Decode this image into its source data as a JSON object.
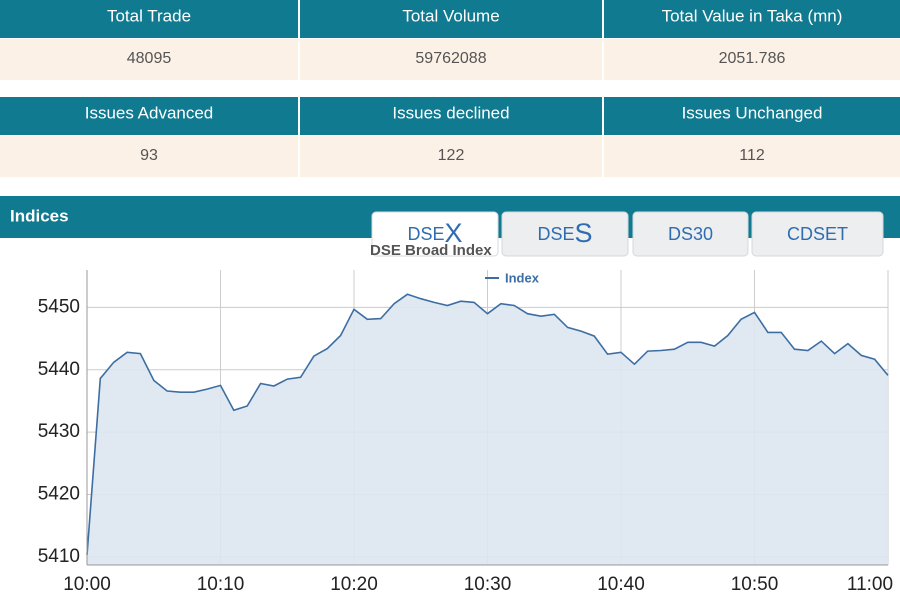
{
  "summary_table": {
    "headers": [
      "Total Trade",
      "Total Volume",
      "Total Value in Taka (mn)"
    ],
    "values": [
      "48095",
      "59762088",
      "2051.786"
    ]
  },
  "issues_table": {
    "headers": [
      "Issues Advanced",
      "Issues declined",
      "Issues Unchanged"
    ],
    "values": [
      "93",
      "122",
      "112"
    ]
  },
  "section_title": "Indices",
  "tabs": [
    {
      "text": "DSE",
      "accent": "X"
    },
    {
      "text": "DSE",
      "accent": "S"
    },
    {
      "text": "DS30"
    },
    {
      "text": "CDSET"
    }
  ],
  "chart_data": {
    "type": "line",
    "title": "DSE Broad Index",
    "x": [
      "10:00",
      "10:01",
      "10:02",
      "10:03",
      "10:04",
      "10:05",
      "10:06",
      "10:07",
      "10:08",
      "10:09",
      "10:10",
      "10:11",
      "10:12",
      "10:13",
      "10:14",
      "10:15",
      "10:16",
      "10:17",
      "10:18",
      "10:19",
      "10:20",
      "10:21",
      "10:22",
      "10:23",
      "10:24",
      "10:25",
      "10:26",
      "10:27",
      "10:28",
      "10:29",
      "10:30",
      "10:31",
      "10:32",
      "10:33",
      "10:34",
      "10:35",
      "10:36",
      "10:37",
      "10:38",
      "10:39",
      "10:40",
      "10:41",
      "10:42",
      "10:43",
      "10:44",
      "10:45",
      "10:46",
      "10:47",
      "10:48",
      "10:49",
      "10:50",
      "10:51",
      "10:52",
      "10:53",
      "10:54",
      "10:55",
      "10:56",
      "10:57",
      "10:58",
      "10:59",
      "11:00"
    ],
    "series": [
      {
        "name": "Index",
        "color": "#3d6ea3",
        "values": [
          5410.3,
          5438.6,
          5441.2,
          5442.8,
          5442.6,
          5438.3,
          5436.6,
          5436.4,
          5436.4,
          5436.9,
          5437.5,
          5433.5,
          5434.2,
          5437.8,
          5437.4,
          5438.5,
          5438.8,
          5442.2,
          5443.4,
          5445.5,
          5449.7,
          5448.1,
          5448.2,
          5450.6,
          5452.1,
          5451.4,
          5450.8,
          5450.3,
          5451.0,
          5450.8,
          5449.0,
          5450.6,
          5450.3,
          5449.0,
          5448.6,
          5448.9,
          5446.8,
          5446.2,
          5445.4,
          5442.5,
          5442.8,
          5440.9,
          5443.0,
          5443.1,
          5443.3,
          5444.4,
          5444.4,
          5443.8,
          5445.5,
          5448.1,
          5449.2,
          5446.0,
          5446.0,
          5443.3,
          5443.1,
          5444.6,
          5442.6,
          5444.2,
          5442.3,
          5441.7,
          5439.1
        ]
      }
    ],
    "xlim": [
      "10:00",
      "11:00"
    ],
    "xticks": [
      "10:00",
      "10:10",
      "10:20",
      "10:30",
      "10:40",
      "10:50",
      "11:00"
    ],
    "ylim": [
      5408.7,
      5456
    ],
    "yticks": [
      5410,
      5420,
      5430,
      5440,
      5450
    ],
    "grid": true
  }
}
